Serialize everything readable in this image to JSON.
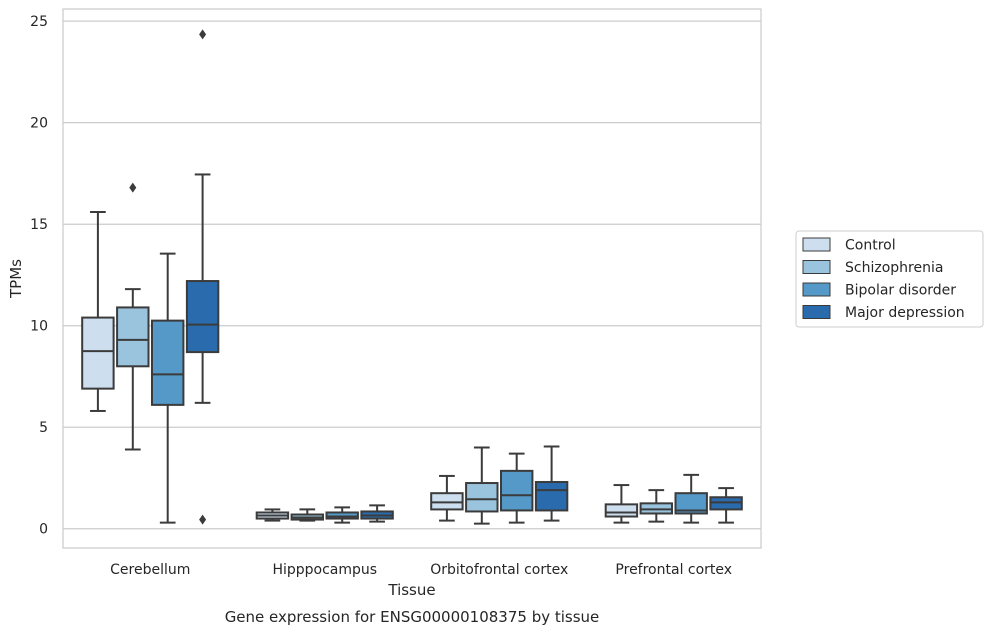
{
  "caption": "Gene expression for ENSG00000108375 by tissue",
  "chart_data": {
    "type": "boxplot",
    "title": "",
    "xlabel": "Tissue",
    "ylabel": "TPMs",
    "ylim": [
      -0.95,
      25.6
    ],
    "yticks": [
      0,
      5,
      10,
      15,
      20,
      25
    ],
    "grid": "horizontal",
    "legend_position": "right",
    "categories": [
      "Cerebellum",
      "Hipppocampus",
      "Orbitofrontal cortex",
      "Prefrontal cortex"
    ],
    "series": [
      {
        "name": "Control",
        "color": "#cddeef",
        "boxes": [
          {
            "whisker_low": 5.8,
            "q1": 6.9,
            "median": 8.75,
            "q3": 10.4,
            "whisker_high": 15.6,
            "outliers": []
          },
          {
            "whisker_low": 0.4,
            "q1": 0.5,
            "median": 0.65,
            "q3": 0.8,
            "whisker_high": 0.95,
            "outliers": []
          },
          {
            "whisker_low": 0.4,
            "q1": 0.95,
            "median": 1.3,
            "q3": 1.75,
            "whisker_high": 2.6,
            "outliers": []
          },
          {
            "whisker_low": 0.3,
            "q1": 0.6,
            "median": 0.8,
            "q3": 1.2,
            "whisker_high": 2.15,
            "outliers": []
          }
        ]
      },
      {
        "name": "Schizophrenia",
        "color": "#9ac4de",
        "boxes": [
          {
            "whisker_low": 3.9,
            "q1": 8.0,
            "median": 9.3,
            "q3": 10.9,
            "whisker_high": 11.8,
            "outliers": [
              16.8
            ]
          },
          {
            "whisker_low": 0.4,
            "q1": 0.45,
            "median": 0.55,
            "q3": 0.7,
            "whisker_high": 0.95,
            "outliers": []
          },
          {
            "whisker_low": 0.25,
            "q1": 0.85,
            "median": 1.45,
            "q3": 2.25,
            "whisker_high": 4.0,
            "outliers": []
          },
          {
            "whisker_low": 0.35,
            "q1": 0.75,
            "median": 0.95,
            "q3": 1.25,
            "whisker_high": 1.9,
            "outliers": []
          }
        ]
      },
      {
        "name": "Bipolar disorder",
        "color": "#5499c7",
        "boxes": [
          {
            "whisker_low": 0.3,
            "q1": 6.1,
            "median": 7.6,
            "q3": 10.25,
            "whisker_high": 13.55,
            "outliers": []
          },
          {
            "whisker_low": 0.3,
            "q1": 0.5,
            "median": 0.6,
            "q3": 0.8,
            "whisker_high": 1.05,
            "outliers": []
          },
          {
            "whisker_low": 0.3,
            "q1": 0.9,
            "median": 1.65,
            "q3": 2.85,
            "whisker_high": 3.7,
            "outliers": []
          },
          {
            "whisker_low": 0.3,
            "q1": 0.75,
            "median": 0.9,
            "q3": 1.75,
            "whisker_high": 2.65,
            "outliers": []
          }
        ]
      },
      {
        "name": "Major depression",
        "color": "#2a6bad",
        "boxes": [
          {
            "whisker_low": 6.2,
            "q1": 8.7,
            "median": 10.05,
            "q3": 12.2,
            "whisker_high": 17.45,
            "outliers": [
              24.35,
              0.45
            ]
          },
          {
            "whisker_low": 0.35,
            "q1": 0.5,
            "median": 0.65,
            "q3": 0.85,
            "whisker_high": 1.15,
            "outliers": []
          },
          {
            "whisker_low": 0.4,
            "q1": 0.9,
            "median": 1.9,
            "q3": 2.3,
            "whisker_high": 4.05,
            "outliers": []
          },
          {
            "whisker_low": 0.3,
            "q1": 0.95,
            "median": 1.3,
            "q3": 1.55,
            "whisker_high": 2.0,
            "outliers": []
          }
        ]
      }
    ]
  }
}
